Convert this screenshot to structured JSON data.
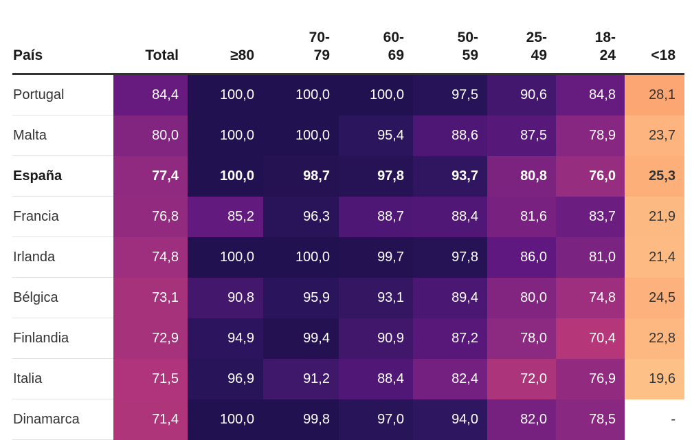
{
  "chart_data": {
    "type": "heatmap",
    "columns": [
      "País",
      "Total",
      "≥80",
      "70-\n79",
      "60-\n69",
      "50-\n59",
      "25-\n49",
      "18-\n24",
      "<18"
    ],
    "rows": [
      {
        "country": "Portugal",
        "values": [
          "84,4",
          "100,0",
          "100,0",
          "100,0",
          "97,5",
          "90,6",
          "84,8",
          "28,1"
        ]
      },
      {
        "country": "Malta",
        "values": [
          "80,0",
          "100,0",
          "100,0",
          "95,4",
          "88,6",
          "87,5",
          "78,9",
          "23,7"
        ]
      },
      {
        "country": "España",
        "values": [
          "77,4",
          "100,0",
          "98,7",
          "97,8",
          "93,7",
          "80,8",
          "76,0",
          "25,3"
        ],
        "highlight": true
      },
      {
        "country": "Francia",
        "values": [
          "76,8",
          "85,2",
          "96,3",
          "88,7",
          "88,4",
          "81,6",
          "83,7",
          "21,9"
        ]
      },
      {
        "country": "Irlanda",
        "values": [
          "74,8",
          "100,0",
          "100,0",
          "99,7",
          "97,8",
          "86,0",
          "81,0",
          "21,4"
        ]
      },
      {
        "country": "Bélgica",
        "values": [
          "73,1",
          "90,8",
          "95,9",
          "93,1",
          "89,4",
          "80,0",
          "74,8",
          "24,5"
        ]
      },
      {
        "country": "Finlandia",
        "values": [
          "72,9",
          "94,9",
          "99,4",
          "90,9",
          "87,2",
          "78,0",
          "70,4",
          "22,8"
        ]
      },
      {
        "country": "Italia",
        "values": [
          "71,5",
          "96,9",
          "91,2",
          "88,4",
          "82,4",
          "72,0",
          "76,9",
          "19,6"
        ]
      },
      {
        "country": "Dinamarca",
        "values": [
          "71,4",
          "100,0",
          "99,8",
          "97,0",
          "94,0",
          "82,0",
          "78,5",
          "-"
        ]
      }
    ],
    "colors": {
      "scale": [
        "#fecf93",
        "#fca06e",
        "#b73779",
        "#8c2981",
        "#5f187f",
        "#2e1660",
        "#221150"
      ],
      "scale_stops": [
        15,
        30,
        70,
        78,
        86,
        94,
        100
      ],
      "empty": "#ffffff",
      "text_dark": "#333333",
      "text_light": "#ffffff"
    }
  }
}
